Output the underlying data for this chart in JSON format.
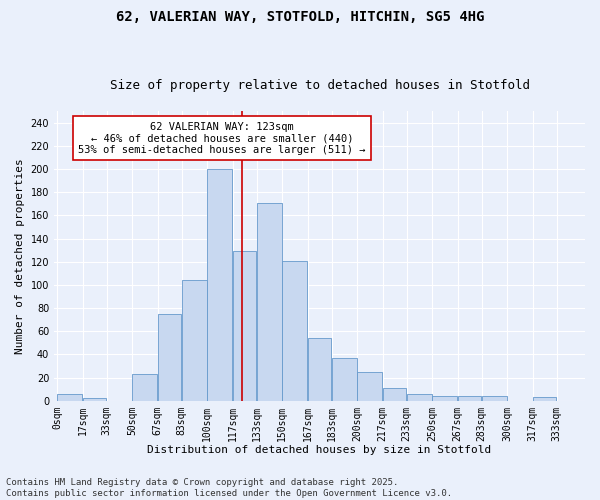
{
  "title1": "62, VALERIAN WAY, STOTFOLD, HITCHIN, SG5 4HG",
  "title2": "Size of property relative to detached houses in Stotfold",
  "xlabel": "Distribution of detached houses by size in Stotfold",
  "ylabel": "Number of detached properties",
  "bar_labels": [
    "0sqm",
    "17sqm",
    "33sqm",
    "50sqm",
    "67sqm",
    "83sqm",
    "100sqm",
    "117sqm",
    "133sqm",
    "150sqm",
    "167sqm",
    "183sqm",
    "200sqm",
    "217sqm",
    "233sqm",
    "250sqm",
    "267sqm",
    "283sqm",
    "300sqm",
    "317sqm",
    "333sqm"
  ],
  "bar_values": [
    6,
    2,
    0,
    23,
    75,
    104,
    200,
    129,
    171,
    121,
    54,
    37,
    25,
    11,
    6,
    4,
    4,
    4,
    0,
    3,
    0
  ],
  "bar_color": "#c8d8f0",
  "bar_edge_color": "#6699cc",
  "vline_x": 123,
  "vline_color": "#cc0000",
  "annotation_text": "62 VALERIAN WAY: 123sqm\n← 46% of detached houses are smaller (440)\n53% of semi-detached houses are larger (511) →",
  "annotation_box_color": "#ffffff",
  "annotation_box_edge_color": "#cc0000",
  "footer1": "Contains HM Land Registry data © Crown copyright and database right 2025.",
  "footer2": "Contains public sector information licensed under the Open Government Licence v3.0.",
  "ylim": [
    0,
    250
  ],
  "yticks": [
    0,
    20,
    40,
    60,
    80,
    100,
    120,
    140,
    160,
    180,
    200,
    220,
    240
  ],
  "background_color": "#eaf0fb",
  "grid_color": "#ffffff",
  "title1_fontsize": 10,
  "title2_fontsize": 9,
  "axis_label_fontsize": 8,
  "tick_fontsize": 7,
  "annotation_fontsize": 7.5,
  "footer_fontsize": 6.5
}
